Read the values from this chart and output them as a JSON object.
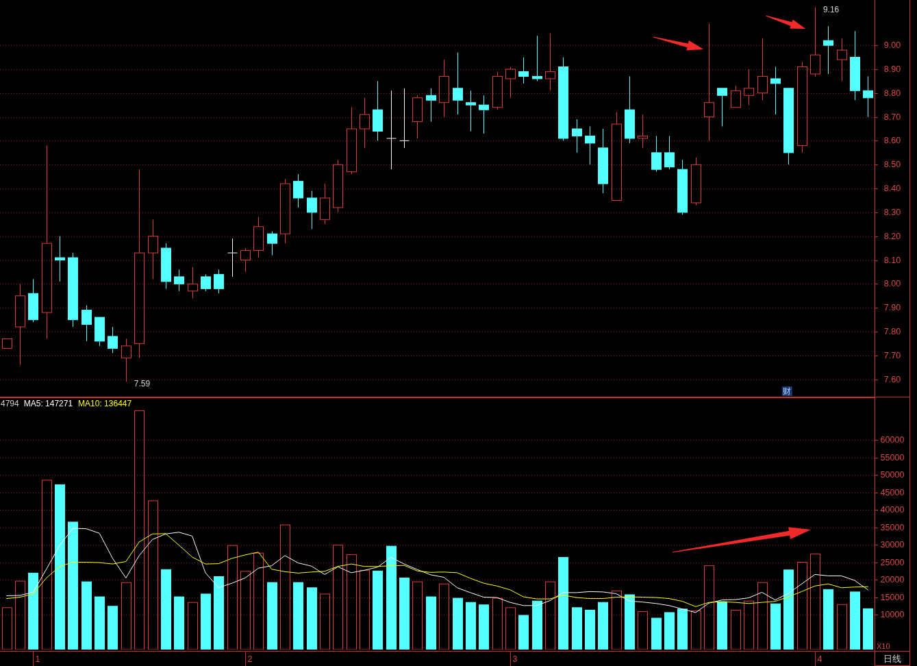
{
  "chart_data": [
    {
      "type": "candlestick",
      "categories": [
        null,
        null,
        null,
        null,
        null,
        null,
        null,
        null,
        null,
        null,
        null,
        null,
        null,
        null,
        null,
        null,
        null,
        null,
        null,
        null,
        null,
        null,
        null,
        null,
        null,
        null,
        null,
        null,
        null,
        null,
        null,
        null,
        null,
        null,
        null,
        null,
        null,
        null,
        null,
        null,
        null,
        null,
        null,
        null,
        null,
        null,
        null,
        null,
        null,
        null,
        null,
        null,
        null,
        null,
        null,
        null,
        null,
        null,
        null,
        null,
        null,
        null,
        null,
        null,
        null,
        null
      ],
      "ohlc": [
        [
          7.73,
          7.77,
          7.73,
          7.77
        ],
        [
          7.82,
          8.0,
          7.66,
          7.95
        ],
        [
          7.96,
          8.02,
          7.84,
          7.85
        ],
        [
          7.88,
          8.58,
          7.77,
          8.17
        ],
        [
          8.11,
          8.2,
          8.01,
          8.1
        ],
        [
          8.11,
          8.13,
          7.82,
          7.85
        ],
        [
          7.89,
          7.91,
          7.76,
          7.83
        ],
        [
          7.86,
          7.86,
          7.74,
          7.76
        ],
        [
          7.78,
          7.82,
          7.71,
          7.73
        ],
        [
          7.69,
          7.77,
          7.59,
          7.74
        ],
        [
          7.75,
          8.48,
          7.69,
          8.13
        ],
        [
          8.13,
          8.27,
          8.02,
          8.2
        ],
        [
          8.15,
          8.17,
          7.98,
          8.01
        ],
        [
          8.03,
          8.06,
          7.97,
          8.0
        ],
        [
          7.97,
          8.07,
          7.94,
          8.0
        ],
        [
          8.03,
          8.04,
          7.97,
          7.98
        ],
        [
          8.04,
          8.06,
          7.96,
          7.98
        ],
        [
          8.13,
          8.19,
          8.03,
          8.13
        ],
        [
          8.1,
          8.15,
          8.05,
          8.14
        ],
        [
          8.14,
          8.28,
          8.11,
          8.24
        ],
        [
          8.21,
          8.22,
          8.12,
          8.17
        ],
        [
          8.21,
          8.44,
          8.17,
          8.42
        ],
        [
          8.43,
          8.46,
          8.32,
          8.36
        ],
        [
          8.36,
          8.39,
          8.23,
          8.3
        ],
        [
          8.27,
          8.42,
          8.25,
          8.36
        ],
        [
          8.32,
          8.52,
          8.3,
          8.5
        ],
        [
          8.47,
          8.74,
          8.46,
          8.65
        ],
        [
          8.65,
          8.78,
          8.57,
          8.71
        ],
        [
          8.73,
          8.85,
          8.6,
          8.64
        ],
        [
          8.61,
          8.81,
          8.48,
          8.61
        ],
        [
          8.6,
          8.82,
          8.57,
          8.6
        ],
        [
          8.68,
          8.79,
          8.61,
          8.78
        ],
        [
          8.79,
          8.82,
          8.68,
          8.77
        ],
        [
          8.76,
          8.94,
          8.7,
          8.87
        ],
        [
          8.82,
          8.97,
          8.71,
          8.77
        ],
        [
          8.76,
          8.81,
          8.64,
          8.75
        ],
        [
          8.75,
          8.79,
          8.63,
          8.73
        ],
        [
          8.74,
          8.89,
          8.73,
          8.87
        ],
        [
          8.86,
          8.91,
          8.78,
          8.9
        ],
        [
          8.89,
          8.95,
          8.84,
          8.87
        ],
        [
          8.87,
          9.04,
          8.85,
          8.86
        ],
        [
          8.86,
          9.05,
          8.81,
          8.89
        ],
        [
          8.91,
          8.95,
          8.6,
          8.61
        ],
        [
          8.65,
          8.69,
          8.55,
          8.62
        ],
        [
          8.62,
          8.66,
          8.5,
          8.59
        ],
        [
          8.57,
          8.65,
          8.38,
          8.42
        ],
        [
          8.35,
          8.72,
          8.35,
          8.67
        ],
        [
          8.73,
          8.87,
          8.59,
          8.61
        ],
        [
          8.61,
          8.71,
          8.57,
          8.62
        ],
        [
          8.55,
          8.62,
          8.47,
          8.48
        ],
        [
          8.55,
          8.62,
          8.48,
          8.49
        ],
        [
          8.48,
          8.52,
          8.29,
          8.3
        ],
        [
          8.34,
          8.53,
          8.33,
          8.5
        ],
        [
          8.7,
          9.09,
          8.6,
          8.76
        ],
        [
          8.82,
          8.82,
          8.66,
          8.79
        ],
        [
          8.74,
          8.83,
          8.74,
          8.81
        ],
        [
          8.79,
          8.9,
          8.75,
          8.82
        ],
        [
          8.8,
          9.03,
          8.77,
          8.87
        ],
        [
          8.86,
          8.91,
          8.71,
          8.84
        ],
        [
          8.82,
          8.82,
          8.5,
          8.55
        ],
        [
          8.58,
          8.93,
          8.55,
          8.91
        ],
        [
          8.88,
          9.16,
          8.87,
          8.96
        ],
        [
          9.02,
          9.08,
          8.88,
          9.0
        ],
        [
          8.94,
          9.03,
          8.85,
          8.98
        ],
        [
          8.95,
          9.06,
          8.77,
          8.81
        ],
        [
          8.81,
          8.87,
          8.7,
          8.78
        ]
      ],
      "colors": [
        "#dc3c3c",
        "#dc3c3c",
        "#54ffff",
        "#dc3c3c",
        "#54ffff",
        "#54ffff",
        "#54ffff",
        "#54ffff",
        "#54ffff",
        "#dc3c3c",
        "#dc3c3c",
        "#dc3c3c",
        "#54ffff",
        "#54ffff",
        "#dc3c3c",
        "#54ffff",
        "#54ffff",
        "#ffffff",
        "#dc3c3c",
        "#dc3c3c",
        "#54ffff",
        "#dc3c3c",
        "#54ffff",
        "#54ffff",
        "#dc3c3c",
        "#dc3c3c",
        "#dc3c3c",
        "#dc3c3c",
        "#54ffff",
        "#ffffff",
        "#ffffff",
        "#dc3c3c",
        "#54ffff",
        "#dc3c3c",
        "#54ffff",
        "#54ffff",
        "#54ffff",
        "#dc3c3c",
        "#dc3c3c",
        "#54ffff",
        "#54ffff",
        "#dc3c3c",
        "#54ffff",
        "#54ffff",
        "#54ffff",
        "#54ffff",
        "#dc3c3c",
        "#54ffff",
        "#dc3c3c",
        "#54ffff",
        "#54ffff",
        "#54ffff",
        "#dc3c3c",
        "#dc3c3c",
        "#54ffff",
        "#dc3c3c",
        "#dc3c3c",
        "#dc3c3c",
        "#54ffff",
        "#54ffff",
        "#dc3c3c",
        "#dc3c3c",
        "#54ffff",
        "#dc3c3c",
        "#54ffff",
        "#54ffff"
      ],
      "ylim": [
        7.53,
        9.19
      ],
      "yticks": [
        {
          "value": 7.6,
          "label": "7.60"
        },
        {
          "value": 7.7,
          "label": "7.70"
        },
        {
          "value": 7.8,
          "label": "7.80"
        },
        {
          "value": 7.9,
          "label": "7.90"
        },
        {
          "value": 8.0,
          "label": "8.00"
        },
        {
          "value": 8.1,
          "label": "8.10"
        },
        {
          "value": 8.2,
          "label": "8.20"
        },
        {
          "value": 8.3,
          "label": "8.30"
        },
        {
          "value": 8.4,
          "label": "8.40"
        },
        {
          "value": 8.5,
          "label": "8.50"
        },
        {
          "value": 8.6,
          "label": "8.60"
        },
        {
          "value": 8.7,
          "label": "8.70"
        },
        {
          "value": 8.8,
          "label": "8.80"
        },
        {
          "value": 8.9,
          "label": "8.90"
        },
        {
          "value": 9.0,
          "label": "9.00"
        }
      ],
      "grid": "y",
      "tick_labels": "y",
      "annotations": [
        "9.16",
        "7.59",
        "财"
      ]
    },
    {
      "type": "bar",
      "categories": [
        null,
        null,
        "1",
        null,
        null,
        null,
        null,
        null,
        null,
        null,
        null,
        null,
        null,
        null,
        null,
        null,
        null,
        null,
        "2",
        null,
        null,
        null,
        null,
        null,
        null,
        null,
        null,
        null,
        null,
        null,
        null,
        null,
        null,
        null,
        null,
        null,
        null,
        null,
        "3",
        null,
        null,
        null,
        null,
        null,
        null,
        null,
        null,
        null,
        null,
        null,
        null,
        null,
        null,
        null,
        null,
        null,
        null,
        null,
        null,
        null,
        null,
        "4",
        null,
        null,
        null,
        null
      ],
      "series": [
        {
          "color": "#dc3c3c",
          "values": [
            12000,
            19600,
            null,
            48500,
            null,
            null,
            null,
            null,
            null,
            19200,
            68400,
            42600,
            null,
            null,
            13500,
            null,
            null,
            29800,
            22400,
            27600,
            null,
            35700,
            null,
            null,
            15900,
            29900,
            27200,
            22700,
            null,
            null,
            null,
            19400,
            null,
            18800,
            null,
            null,
            null,
            14700,
            12000,
            null,
            null,
            19400,
            null,
            null,
            null,
            null,
            16800,
            null,
            10900,
            null,
            null,
            null,
            11100,
            24000,
            null,
            11300,
            13900,
            19200,
            null,
            null,
            25000,
            27400,
            null,
            12900,
            null,
            null
          ]
        },
        {
          "color": "#54ffff",
          "values": [
            null,
            null,
            21900,
            null,
            47200,
            36500,
            19400,
            15100,
            12400,
            null,
            null,
            null,
            22900,
            15100,
            null,
            15900,
            20900,
            null,
            null,
            null,
            19200,
            null,
            19200,
            17700,
            null,
            null,
            null,
            null,
            22500,
            29600,
            20500,
            null,
            15100,
            null,
            14700,
            13500,
            12800,
            null,
            null,
            9800,
            13900,
            null,
            26400,
            12000,
            11300,
            13500,
            null,
            15700,
            null,
            9000,
            10600,
            11600,
            null,
            null,
            13700,
            null,
            null,
            null,
            13100,
            22800,
            null,
            null,
            17200,
            null,
            16500,
            11700
          ]
        },
        {
          "type": "line",
          "name": "MA5: 147271",
          "color": "#ffffff",
          "values": [
            15400,
            15500,
            16400,
            23000,
            29800,
            34700,
            34600,
            33300,
            26100,
            20500,
            26900,
            31500,
            33100,
            33600,
            32500,
            22000,
            17700,
            19000,
            20500,
            23300,
            24000,
            26900,
            24800,
            23900,
            21500,
            23700,
            22000,
            22700,
            23600,
            26400,
            24500,
            22900,
            21400,
            20700,
            17700,
            16300,
            15000,
            14900,
            13500,
            12600,
            12600,
            14000,
            16300,
            16300,
            16600,
            16500,
            16000,
            13900,
            13600,
            13200,
            12600,
            11600,
            10600,
            13300,
            14200,
            14300,
            14800,
            16400,
            14200,
            16100,
            18800,
            21500,
            21100,
            21100,
            19800,
            17100
          ]
        },
        {
          "type": "line",
          "name": "MA10: 136447",
          "color": "#ffff00",
          "values": [
            14600,
            15000,
            15900,
            20500,
            23800,
            25000,
            25000,
            24900,
            24500,
            25200,
            30800,
            33100,
            33200,
            29900,
            26500,
            24500,
            24600,
            26100,
            27100,
            27900,
            23000,
            22300,
            21900,
            22200,
            22400,
            23800,
            24500,
            23800,
            23800,
            24000,
            24100,
            22500,
            22100,
            22200,
            22000,
            20400,
            19000,
            18200,
            17100,
            15100,
            14500,
            14500,
            15600,
            14900,
            14600,
            14600,
            15000,
            15100,
            15000,
            14900,
            14600,
            13800,
            12300,
            13500,
            13700,
            13500,
            13200,
            13500,
            13800,
            15100,
            16600,
            18200,
            18800,
            17700,
            17900,
            18000
          ]
        }
      ],
      "ylim": [
        0,
        72000
      ],
      "yticks": [
        10000,
        15000,
        20000,
        25000,
        30000,
        35000,
        40000,
        45000,
        50000,
        55000,
        60000
      ],
      "grid": "y",
      "legend": "top left",
      "annotations": [
        "4794",
        "X10",
        "日线"
      ]
    }
  ]
}
